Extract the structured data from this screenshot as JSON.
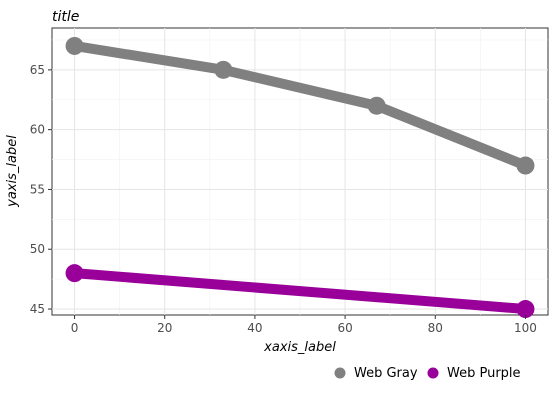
{
  "chart_data": {
    "type": "line",
    "title": "title",
    "xlabel": "xaxis_label",
    "ylabel": "yaxis_label",
    "xlim": [
      -5,
      105
    ],
    "ylim": [
      44.5,
      68.5
    ],
    "xticks": [
      0,
      20,
      40,
      60,
      80,
      100
    ],
    "yticks": [
      45,
      50,
      55,
      60,
      65
    ],
    "grid": true,
    "legend_position": "bottom",
    "series": [
      {
        "name": "Web Gray",
        "color": "#808080",
        "x": [
          0,
          33,
          67,
          100
        ],
        "y": [
          67.0,
          65.0,
          62.0,
          57.0
        ],
        "points_x": [
          0,
          33,
          67,
          100
        ],
        "points_y": [
          67.0,
          65.0,
          62.0,
          57.0
        ]
      },
      {
        "name": "Web Purple",
        "color": "#990099",
        "x": [
          0,
          100
        ],
        "y": [
          48.0,
          45.0
        ]
      }
    ]
  }
}
